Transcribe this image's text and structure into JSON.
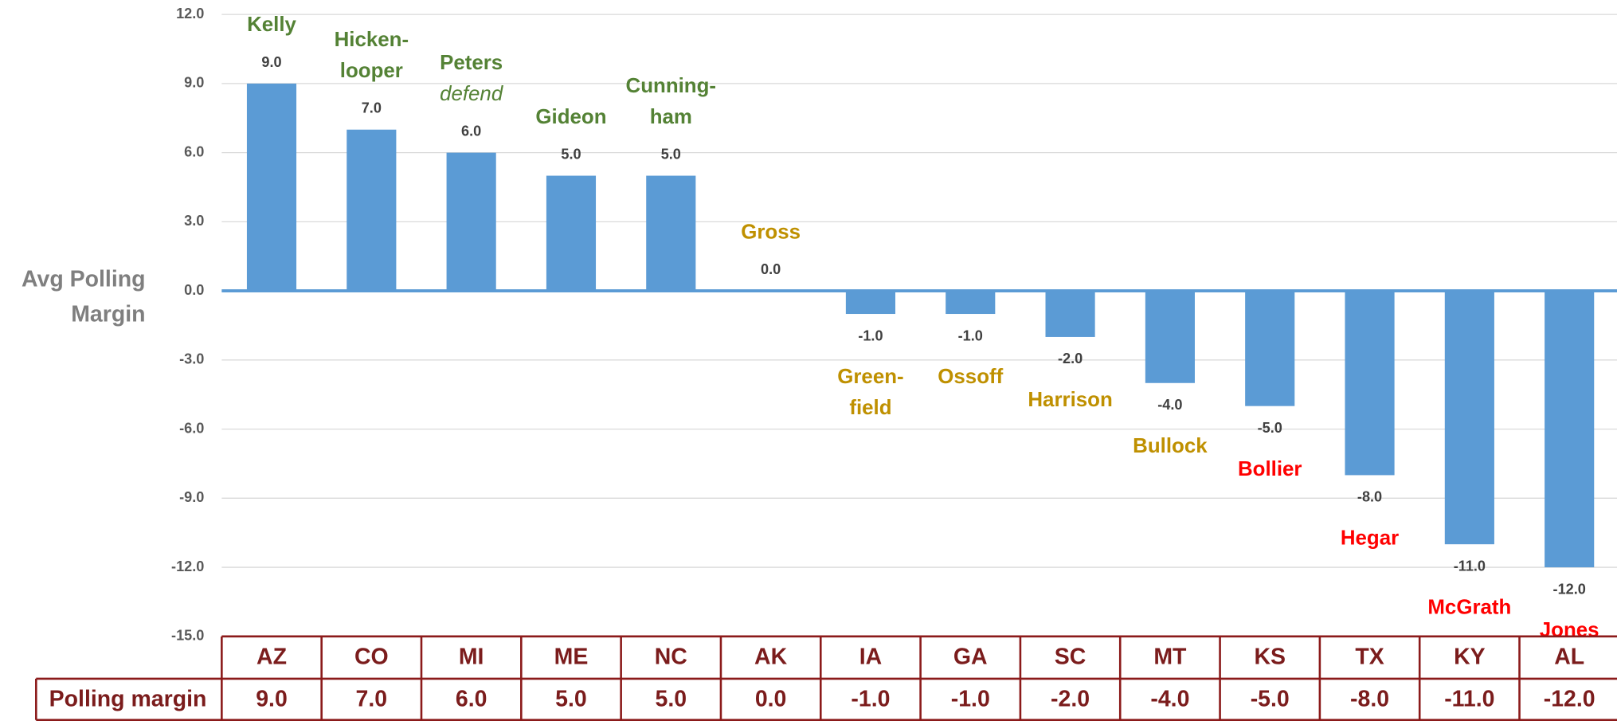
{
  "chart_data": {
    "type": "bar",
    "y_label": [
      "Avg Polling",
      "Margin"
    ],
    "categories": [
      "AZ",
      "CO",
      "MI",
      "ME",
      "NC",
      "AK",
      "IA",
      "GA",
      "SC",
      "MT",
      "KS",
      "TX",
      "KY",
      "AL"
    ],
    "values": [
      9,
      7,
      6,
      5,
      5,
      0,
      -1,
      -1,
      -2,
      -4,
      -5,
      -8,
      -11,
      -12
    ],
    "value_labels": [
      "9.0",
      "7.0",
      "6.0",
      "5.0",
      "5.0",
      "0.0",
      "-1.0",
      "-1.0",
      "-2.0",
      "-4.0",
      "-5.0",
      "-8.0",
      "-11.0",
      "-12.0"
    ],
    "color": "#5b9bd5",
    "candidates": [
      {
        "lines": [
          "Kelly"
        ],
        "color": "#548235"
      },
      {
        "lines": [
          "Hicken-",
          "looper"
        ],
        "color": "#548235"
      },
      {
        "lines": [
          "Peters"
        ],
        "note": "defend",
        "color": "#548235"
      },
      {
        "lines": [
          "Gideon"
        ],
        "color": "#548235"
      },
      {
        "lines": [
          "Cunning-",
          "ham"
        ],
        "color": "#548235"
      },
      {
        "lines": [
          "Gross"
        ],
        "color": "#bf9000"
      },
      {
        "lines": [
          "Green-",
          "field"
        ],
        "color": "#bf9000"
      },
      {
        "lines": [
          "Ossoff"
        ],
        "color": "#bf9000"
      },
      {
        "lines": [
          "Harrison"
        ],
        "color": "#bf9000"
      },
      {
        "lines": [
          "Bullock"
        ],
        "color": "#bf9000"
      },
      {
        "lines": [
          "Bollier"
        ],
        "color": "#ff0000"
      },
      {
        "lines": [
          "Hegar"
        ],
        "color": "#ff0000"
      },
      {
        "lines": [
          "McGrath"
        ],
        "color": "#ff0000"
      },
      {
        "lines": [
          "Jones"
        ],
        "color": "#ff0000"
      }
    ],
    "table_row_label": "Polling margin",
    "ylim": [
      -15,
      12
    ],
    "yticks": [
      {
        "value": -15,
        "label": "-15.0"
      },
      {
        "value": -12,
        "label": "-12.0"
      },
      {
        "value": -9,
        "label": "-9.0"
      },
      {
        "value": -6,
        "label": "-6.0"
      },
      {
        "value": -3,
        "label": "-3.0"
      },
      {
        "value": 0,
        "label": "0.0"
      },
      {
        "value": 3,
        "label": "3.0"
      },
      {
        "value": 6,
        "label": "6.0"
      },
      {
        "value": 9,
        "label": "9.0"
      },
      {
        "value": 12,
        "label": "12.0"
      }
    ],
    "grid": true
  }
}
